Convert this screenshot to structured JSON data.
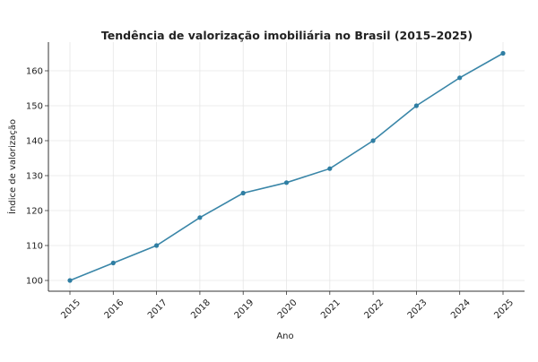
{
  "chart_data": {
    "type": "line",
    "title": "Tendência de valorização imobiliária no Brasil (2015–2025)",
    "xlabel": "Ano",
    "ylabel": "Índice de valorização",
    "x": [
      "2015",
      "2016",
      "2017",
      "2018",
      "2019",
      "2020",
      "2021",
      "2022",
      "2023",
      "2024",
      "2025"
    ],
    "values": [
      100,
      105,
      110,
      118,
      125,
      128,
      132,
      140,
      150,
      158,
      165
    ],
    "yticks": [
      100,
      110,
      120,
      130,
      140,
      150,
      160
    ],
    "ylim": [
      97,
      168
    ],
    "grid": true,
    "marker": "circle",
    "line_color": "#3a86a8",
    "marker_color": "#2f7ea3"
  }
}
